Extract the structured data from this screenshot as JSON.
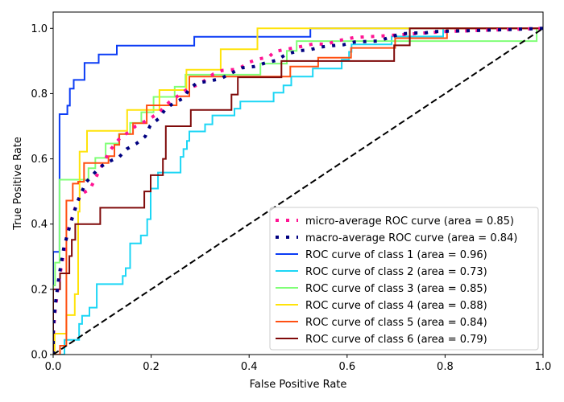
{
  "chart_data": {
    "type": "line",
    "title": "",
    "xlabel": "False Positive Rate",
    "ylabel": "True Positive Rate",
    "xlim": [
      0.0,
      1.0
    ],
    "ylim": [
      0.0,
      1.05
    ],
    "xticks": [
      "0.0",
      "0.2",
      "0.4",
      "0.6",
      "0.8",
      "1.0"
    ],
    "yticks": [
      "0.0",
      "0.2",
      "0.4",
      "0.6",
      "0.8",
      "1.0"
    ],
    "grid": false,
    "legend_position": "lower-right",
    "chance_line": {
      "name": "chance",
      "color": "#000000",
      "style": "dashed",
      "x": [
        0,
        1
      ],
      "y": [
        0,
        1
      ]
    },
    "series": [
      {
        "name": "micro-average ROC curve (area = 0.85)",
        "color": "#ff1493",
        "style": "dotted",
        "x": [
          0,
          0.0,
          0.003,
          0.01,
          0.02,
          0.03,
          0.045,
          0.056,
          0.075,
          0.092,
          0.116,
          0.138,
          0.157,
          0.168,
          0.185,
          0.199,
          0.215,
          0.237,
          0.275,
          0.3,
          0.327,
          0.345,
          0.37,
          0.385,
          0.4,
          0.419,
          0.44,
          0.452,
          0.508,
          0.533,
          0.558,
          0.577,
          0.615,
          0.662,
          0.684,
          0.75,
          0.8,
          0.9,
          1.0
        ],
        "y": [
          0,
          0.05,
          0.12,
          0.21,
          0.3,
          0.38,
          0.45,
          0.491,
          0.507,
          0.557,
          0.626,
          0.667,
          0.684,
          0.7,
          0.713,
          0.725,
          0.741,
          0.774,
          0.815,
          0.83,
          0.86,
          0.871,
          0.874,
          0.882,
          0.896,
          0.906,
          0.912,
          0.929,
          0.945,
          0.953,
          0.951,
          0.961,
          0.972,
          0.976,
          0.978,
          0.985,
          0.99,
          0.995,
          1.0
        ]
      },
      {
        "name": "macro-average ROC curve (area = 0.84)",
        "color": "#000080",
        "style": "dotted",
        "x": [
          0,
          0.0,
          0.005,
          0.012,
          0.022,
          0.035,
          0.05,
          0.067,
          0.081,
          0.094,
          0.113,
          0.135,
          0.15,
          0.17,
          0.188,
          0.198,
          0.215,
          0.23,
          0.245,
          0.267,
          0.278,
          0.294,
          0.318,
          0.342,
          0.364,
          0.385,
          0.41,
          0.433,
          0.456,
          0.475,
          0.5,
          0.525,
          0.547,
          0.571,
          0.593,
          0.615,
          0.643,
          0.664,
          0.708,
          0.736,
          0.758,
          0.777,
          0.85,
          0.92,
          1.0
        ],
        "y": [
          0,
          0.08,
          0.16,
          0.24,
          0.33,
          0.4,
          0.47,
          0.528,
          0.551,
          0.573,
          0.591,
          0.606,
          0.63,
          0.647,
          0.669,
          0.702,
          0.723,
          0.754,
          0.77,
          0.787,
          0.815,
          0.833,
          0.838,
          0.846,
          0.863,
          0.879,
          0.883,
          0.894,
          0.902,
          0.92,
          0.931,
          0.935,
          0.943,
          0.947,
          0.95,
          0.958,
          0.96,
          0.961,
          0.983,
          0.986,
          0.986,
          0.99,
          0.993,
          0.996,
          1.0
        ]
      },
      {
        "name": "ROC curve of class 1 (area = 0.96)",
        "color": "#0b3cf5",
        "style": "solid",
        "x": [
          0,
          0,
          0.007,
          0.007,
          0.013,
          0.013,
          0.029,
          0.029,
          0.034,
          0.034,
          0.042,
          0.042,
          0.064,
          0.064,
          0.093,
          0.093,
          0.13,
          0.13,
          0.288,
          0.288,
          0.525,
          0.525,
          1.0
        ],
        "y": [
          0,
          0.315,
          0.315,
          0.315,
          0.315,
          0.737,
          0.737,
          0.763,
          0.763,
          0.815,
          0.815,
          0.842,
          0.842,
          0.894,
          0.894,
          0.92,
          0.92,
          0.947,
          0.947,
          0.974,
          0.974,
          1.0,
          1.0
        ]
      },
      {
        "name": "ROC curve of class 2 (area = 0.73)",
        "color": "#1cd6f5",
        "style": "solid",
        "x": [
          0,
          0.023,
          0.023,
          0.053,
          0.053,
          0.059,
          0.059,
          0.074,
          0.074,
          0.089,
          0.089,
          0.142,
          0.142,
          0.148,
          0.148,
          0.157,
          0.157,
          0.179,
          0.179,
          0.192,
          0.192,
          0.199,
          0.199,
          0.214,
          0.214,
          0.26,
          0.26,
          0.266,
          0.266,
          0.273,
          0.273,
          0.278,
          0.278,
          0.31,
          0.31,
          0.325,
          0.325,
          0.37,
          0.37,
          0.382,
          0.382,
          0.45,
          0.45,
          0.47,
          0.47,
          0.486,
          0.486,
          0.53,
          0.53,
          0.589,
          0.589,
          0.604,
          0.604,
          0.609,
          0.609,
          0.691,
          0.691,
          0.796,
          0.796,
          1.0
        ],
        "y": [
          0,
          0,
          0.045,
          0.045,
          0.094,
          0.094,
          0.119,
          0.119,
          0.144,
          0.144,
          0.216,
          0.216,
          0.241,
          0.241,
          0.265,
          0.265,
          0.341,
          0.341,
          0.365,
          0.365,
          0.415,
          0.415,
          0.509,
          0.509,
          0.558,
          0.558,
          0.606,
          0.606,
          0.63,
          0.63,
          0.655,
          0.655,
          0.684,
          0.684,
          0.706,
          0.706,
          0.733,
          0.733,
          0.754,
          0.754,
          0.776,
          0.776,
          0.803,
          0.803,
          0.825,
          0.825,
          0.852,
          0.852,
          0.877,
          0.877,
          0.904,
          0.904,
          0.928,
          0.928,
          0.951,
          0.951,
          0.975,
          0.975,
          1.0,
          1.0
        ]
      },
      {
        "name": "ROC curve of class 3 (area = 0.85)",
        "color": "#80ff77",
        "style": "solid",
        "x": [
          0,
          0,
          0.004,
          0.004,
          0.013,
          0.013,
          0.072,
          0.072,
          0.086,
          0.086,
          0.107,
          0.107,
          0.134,
          0.134,
          0.157,
          0.157,
          0.18,
          0.18,
          0.205,
          0.205,
          0.248,
          0.248,
          0.27,
          0.27,
          0.423,
          0.423,
          0.477,
          0.477,
          0.497,
          0.497,
          0.987,
          0.987,
          1.0
        ],
        "y": [
          0,
          0.212,
          0.212,
          0.282,
          0.282,
          0.536,
          0.536,
          0.571,
          0.571,
          0.603,
          0.603,
          0.647,
          0.647,
          0.676,
          0.676,
          0.71,
          0.71,
          0.743,
          0.743,
          0.79,
          0.79,
          0.821,
          0.821,
          0.858,
          0.858,
          0.892,
          0.892,
          0.931,
          0.931,
          0.961,
          0.961,
          1.0,
          1.0
        ]
      },
      {
        "name": "ROC curve of class 4 (area = 0.88)",
        "color": "#ffe30a",
        "style": "solid",
        "x": [
          0,
          0.003,
          0.003,
          0.027,
          0.027,
          0.044,
          0.044,
          0.051,
          0.051,
          0.054,
          0.054,
          0.069,
          0.069,
          0.151,
          0.151,
          0.217,
          0.217,
          0.272,
          0.272,
          0.342,
          0.342,
          0.417,
          0.417,
          1.0
        ],
        "y": [
          0,
          0,
          0.064,
          0.064,
          0.121,
          0.121,
          0.185,
          0.185,
          0.438,
          0.438,
          0.622,
          0.622,
          0.686,
          0.686,
          0.75,
          0.75,
          0.811,
          0.811,
          0.873,
          0.873,
          0.936,
          0.936,
          1.0,
          1.0
        ]
      },
      {
        "name": "ROC curve of class 5 (area = 0.84)",
        "color": "#ff5012",
        "style": "solid",
        "x": [
          0,
          0.014,
          0.014,
          0.027,
          0.027,
          0.04,
          0.04,
          0.051,
          0.051,
          0.063,
          0.063,
          0.113,
          0.113,
          0.125,
          0.125,
          0.135,
          0.135,
          0.163,
          0.163,
          0.191,
          0.191,
          0.252,
          0.252,
          0.278,
          0.278,
          0.484,
          0.484,
          0.541,
          0.541,
          0.608,
          0.608,
          0.698,
          0.698,
          0.804,
          0.804,
          1.0
        ],
        "y": [
          0,
          0,
          0.027,
          0.027,
          0.472,
          0.472,
          0.524,
          0.524,
          0.53,
          0.53,
          0.587,
          0.587,
          0.608,
          0.608,
          0.643,
          0.643,
          0.676,
          0.676,
          0.709,
          0.709,
          0.764,
          0.764,
          0.792,
          0.792,
          0.852,
          0.852,
          0.883,
          0.883,
          0.91,
          0.91,
          0.94,
          0.94,
          0.97,
          0.97,
          1.0,
          1.0
        ]
      },
      {
        "name": "ROC curve of class 6 (area = 0.79)",
        "color": "#7f0a0a",
        "style": "solid",
        "x": [
          0,
          0,
          0.014,
          0.014,
          0.033,
          0.033,
          0.038,
          0.038,
          0.045,
          0.045,
          0.096,
          0.096,
          0.186,
          0.186,
          0.199,
          0.199,
          0.224,
          0.224,
          0.23,
          0.23,
          0.281,
          0.281,
          0.364,
          0.364,
          0.377,
          0.377,
          0.466,
          0.466,
          0.696,
          0.696,
          0.728,
          0.728,
          1.0
        ],
        "y": [
          0,
          0.2,
          0.2,
          0.249,
          0.249,
          0.302,
          0.302,
          0.352,
          0.352,
          0.4,
          0.4,
          0.45,
          0.45,
          0.5,
          0.5,
          0.55,
          0.55,
          0.6,
          0.6,
          0.7,
          0.7,
          0.75,
          0.75,
          0.797,
          0.797,
          0.85,
          0.85,
          0.9,
          0.9,
          0.948,
          0.948,
          1.0,
          1.0
        ]
      }
    ]
  }
}
